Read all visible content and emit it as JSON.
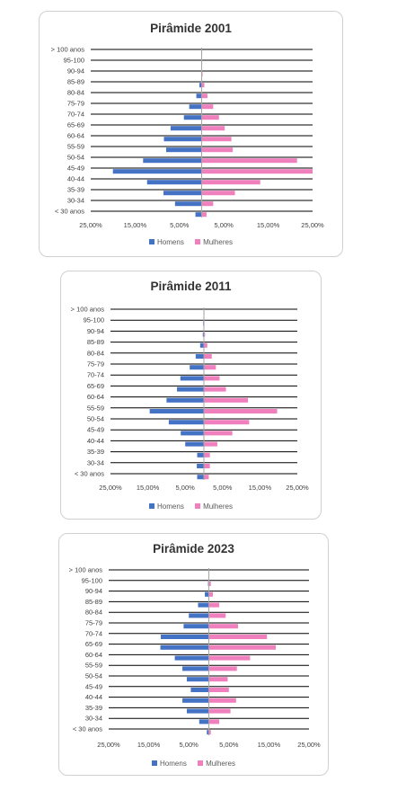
{
  "colors": {
    "homens": "#4472C4",
    "mulheres": "#F07FBE",
    "gridline": "#000000",
    "center": "#A6A6A6"
  },
  "chart_data": [
    {
      "type": "bar",
      "orientation": "horizontal",
      "title": "Pirâmide 2001",
      "categories": [
        "> 100 anos",
        "95-100",
        "90-94",
        "85-89",
        "80-84",
        "75-79",
        "70-74",
        "65-69",
        "60-64",
        "55-59",
        "50-54",
        "45-49",
        "40-44",
        "35-39",
        "30-34",
        "< 30 anos"
      ],
      "series": [
        {
          "name": "Homens",
          "values": [
            -0.1,
            -0.1,
            -0.1,
            -0.5,
            -1.2,
            -2.8,
            -4.0,
            -7.0,
            -8.5,
            -8.0,
            -13.2,
            -20.0,
            -12.3,
            -8.6,
            -6.0,
            -1.4
          ]
        },
        {
          "name": "Mulheres",
          "values": [
            0.1,
            0.1,
            0.2,
            0.6,
            1.3,
            2.6,
            3.9,
            5.2,
            6.7,
            7.0,
            21.5,
            25.0,
            13.2,
            7.5,
            2.6,
            1.1
          ]
        }
      ],
      "xlim": [
        -25,
        25
      ],
      "xticks": [
        -25,
        -15,
        -5,
        5,
        15,
        25
      ],
      "xtick_labels": [
        "25,00%",
        "15,00%",
        "5,00%",
        "5,00%",
        "15,00%",
        "25,00%"
      ],
      "legend": "bottom"
    },
    {
      "type": "bar",
      "orientation": "horizontal",
      "title": "Pirâmide 2011",
      "categories": [
        "> 100 anos",
        "95-100",
        "90-94",
        "85-89",
        "80-84",
        "75-79",
        "70-74",
        "65-69",
        "60-64",
        "55-59",
        "50-54",
        "45-49",
        "40-44",
        "35-39",
        "30-34",
        "< 30 anos"
      ],
      "series": [
        {
          "name": "Homens",
          "values": [
            -0.1,
            -0.2,
            -0.3,
            -1.0,
            -2.2,
            -3.8,
            -6.3,
            -7.2,
            -10.0,
            -14.5,
            -9.4,
            -6.2,
            -5.0,
            -1.8,
            -1.9,
            -1.8
          ]
        },
        {
          "name": "Mulheres",
          "values": [
            0.1,
            0.1,
            0.3,
            0.9,
            2.1,
            3.2,
            4.2,
            5.9,
            11.8,
            19.6,
            12.1,
            7.6,
            3.6,
            1.6,
            1.6,
            1.3
          ]
        }
      ],
      "xlim": [
        -25,
        25
      ],
      "xticks": [
        -25,
        -15,
        -5,
        5,
        15,
        25
      ],
      "xtick_labels": [
        "25,00%",
        "15,00%",
        "5,00%",
        "5,00%",
        "15,00%",
        "25,00%"
      ],
      "legend": "bottom"
    },
    {
      "type": "bar",
      "orientation": "horizontal",
      "title": "Pirâmide 2023",
      "categories": [
        "> 100 anos",
        "95-100",
        "90-94",
        "85-89",
        "80-84",
        "75-79",
        "70-74",
        "65-69",
        "60-64",
        "55-59",
        "50-54",
        "45-49",
        "40-44",
        "35-39",
        "30-34",
        "< 30 anos"
      ],
      "series": [
        {
          "name": "Homens",
          "values": [
            -0.1,
            -0.2,
            -1.0,
            -2.7,
            -5.0,
            -6.3,
            -12.0,
            -12.1,
            -8.5,
            -6.6,
            -5.5,
            -4.5,
            -6.6,
            -5.5,
            -2.4,
            -0.5
          ]
        },
        {
          "name": "Mulheres",
          "values": [
            0.1,
            0.5,
            1.0,
            2.6,
            4.2,
            7.3,
            14.5,
            16.7,
            10.3,
            7.0,
            4.7,
            5.0,
            6.8,
            5.4,
            2.6,
            0.5
          ]
        }
      ],
      "xlim": [
        -25,
        25
      ],
      "xticks": [
        -25,
        -15,
        -5,
        5,
        15,
        25
      ],
      "xtick_labels": [
        "25,00%",
        "15,00%",
        "5,00%",
        "5,00%",
        "15,00%",
        "25,00%"
      ],
      "legend": "bottom"
    }
  ]
}
